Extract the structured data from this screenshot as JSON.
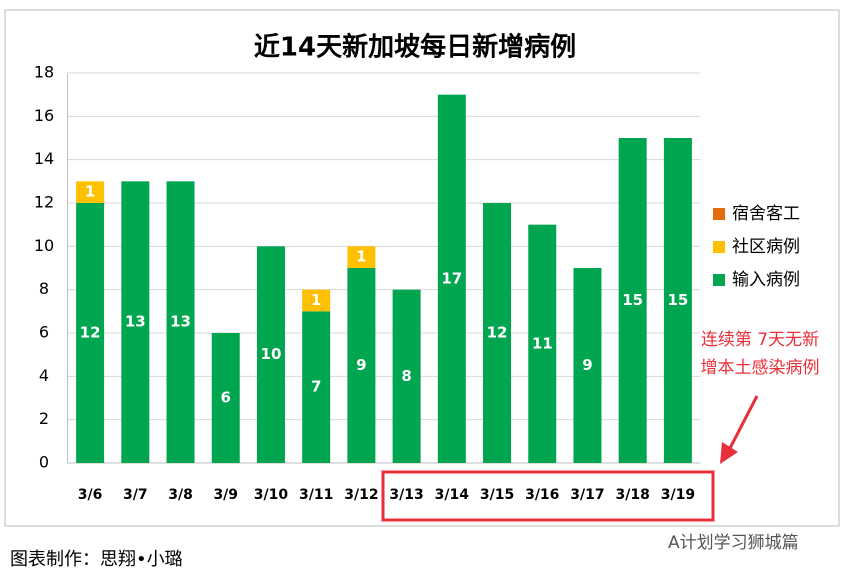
{
  "chart_data": {
    "type": "stacked-bar",
    "title": "近14天新加坡每日新增病例",
    "categories": [
      "3/6",
      "3/7",
      "3/8",
      "3/9",
      "3/10",
      "3/11",
      "3/12",
      "3/13",
      "3/14",
      "3/15",
      "3/16",
      "3/17",
      "3/18",
      "3/19"
    ],
    "series": [
      {
        "name": "宿舍客工",
        "color": "#e36c0a",
        "values": [
          0,
          0,
          0,
          0,
          0,
          0,
          0,
          0,
          0,
          0,
          0,
          0,
          0,
          0
        ]
      },
      {
        "name": "社区病例",
        "color": "#ffc000",
        "values": [
          1,
          0,
          0,
          0,
          0,
          1,
          1,
          0,
          0,
          0,
          0,
          0,
          0,
          0
        ]
      },
      {
        "name": "输入病例",
        "color": "#00a550",
        "values": [
          12,
          13,
          13,
          6,
          10,
          7,
          9,
          8,
          17,
          12,
          11,
          9,
          15,
          15
        ]
      }
    ],
    "ylim": [
      0,
      18
    ],
    "yticks": [
      0,
      2,
      4,
      6,
      8,
      10,
      12,
      14,
      16,
      18
    ],
    "grid": true,
    "legend": "right",
    "annotation": [
      "连续第 7天无新",
      "增本土感染病例"
    ],
    "footer": "图表制作：思翔•小璐",
    "watermark": "A计划学习狮城篇"
  }
}
